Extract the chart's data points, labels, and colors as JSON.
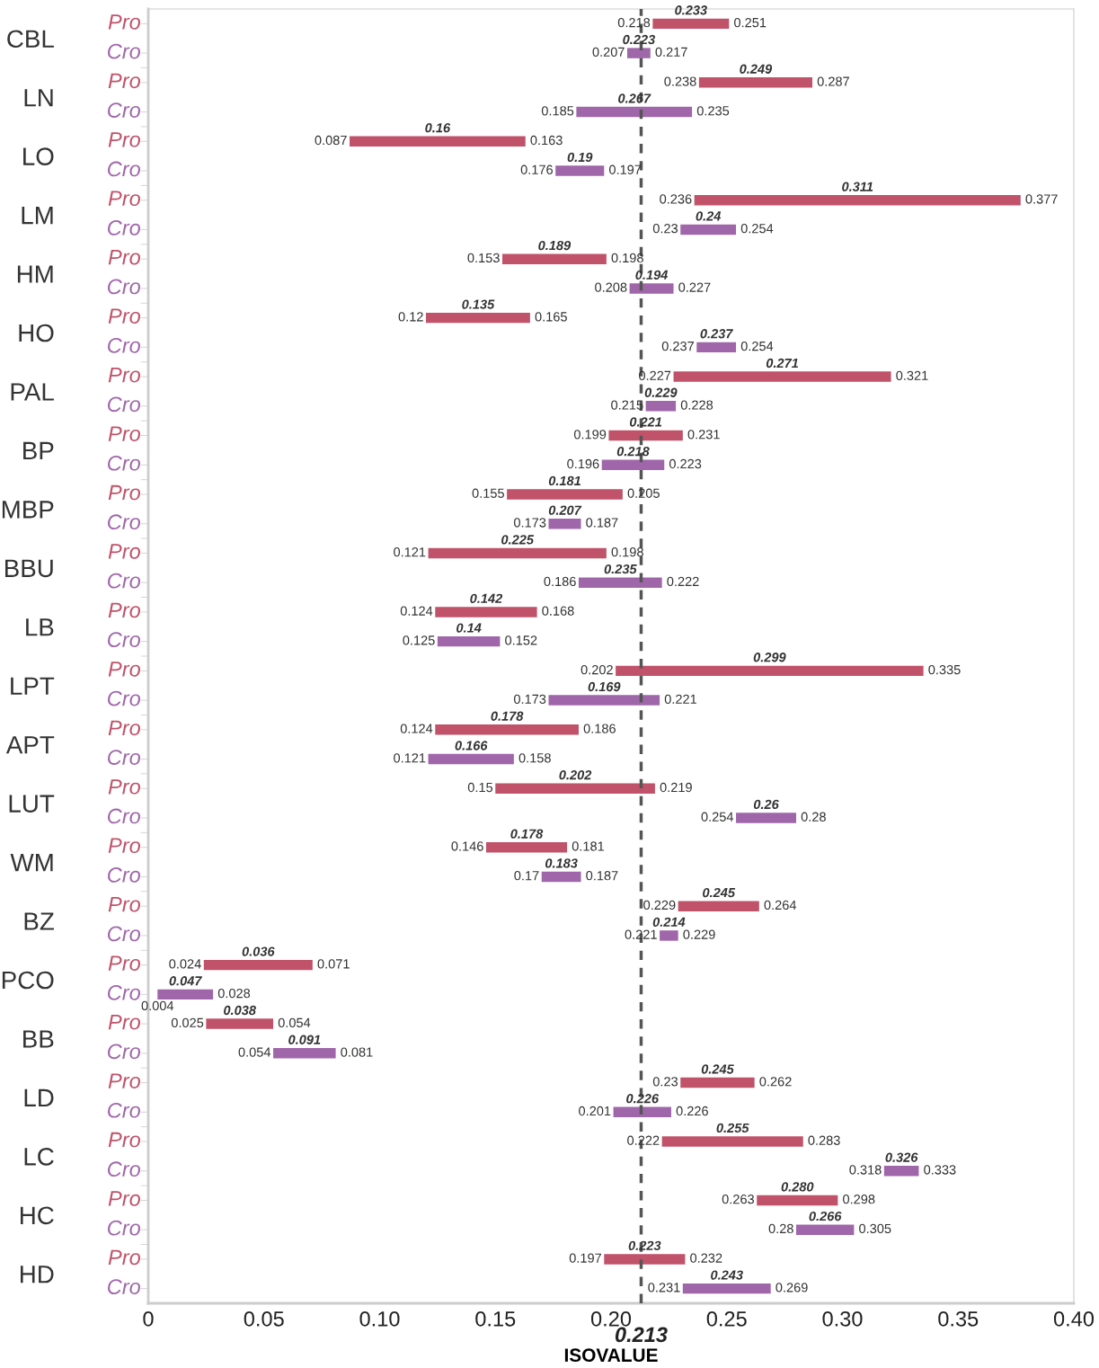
{
  "chart_data": {
    "type": "bar",
    "orientation": "horizontal",
    "xlabel": "ISOVALUE",
    "categories": [
      "CBL",
      "LN",
      "LO",
      "LM",
      "HM",
      "HO",
      "PAL",
      "BP",
      "MBP",
      "BBU",
      "LB",
      "LPT",
      "APT",
      "LUT",
      "WM",
      "BZ",
      "PCO",
      "BB",
      "LD",
      "LC",
      "HC",
      "HD"
    ],
    "series": [
      {
        "name": "Pro",
        "color": "#c0526a",
        "base": [
          0.218,
          0.238,
          0.087,
          0.236,
          0.153,
          0.12,
          0.227,
          0.199,
          0.155,
          0.121,
          0.124,
          0.202,
          0.124,
          0.15,
          0.146,
          0.229,
          0.024,
          0.025,
          0.23,
          0.222,
          0.263,
          0.197
        ],
        "values": [
          0.033,
          0.049,
          0.076,
          0.141,
          0.045,
          0.045,
          0.094,
          0.032,
          0.05,
          0.077,
          0.044,
          0.133,
          0.062,
          0.069,
          0.035,
          0.035,
          0.047,
          0.029,
          0.032,
          0.061,
          0.035,
          0.035
        ]
      },
      {
        "name": "Cro",
        "color": "#a066aa",
        "base": [
          0.207,
          0.185,
          0.176,
          0.23,
          0.208,
          0.237,
          0.215,
          0.196,
          0.173,
          0.186,
          0.125,
          0.173,
          0.121,
          0.254,
          0.17,
          0.221,
          0.004,
          0.054,
          0.201,
          0.318,
          0.28,
          0.231
        ],
        "values": [
          0.01,
          0.05,
          0.021,
          0.024,
          0.019,
          0.017,
          0.013,
          0.027,
          0.014,
          0.036,
          0.027,
          0.048,
          0.037,
          0.026,
          0.017,
          0.008,
          0.024,
          0.027,
          0.025,
          0.015,
          0.025,
          0.038
        ]
      }
    ],
    "annotations": [
      "0.218",
      "0.233",
      "0.251",
      "0.207",
      "0.223",
      "0.217",
      "0.238",
      "0.249",
      "0.287",
      "0.185",
      "0.267",
      "0.235",
      "0.087",
      "0.16",
      "0.163",
      "0.176",
      "0.19",
      "0.197",
      "0.236",
      "0.311",
      "0.377",
      "0.23",
      "0.24",
      "0.254",
      "0.153",
      "0.189",
      "0.198",
      "0.208",
      "0.194",
      "0.227",
      "0.12",
      "0.135",
      "0.165",
      "0.237",
      "0.237",
      "0.254",
      "0.227",
      "0.271",
      "0.321",
      "0.215",
      "0.229",
      "0.228",
      "0.199",
      "0.221",
      "0.231",
      "0.196",
      "0.218",
      "0.223",
      "0.155",
      "0.181",
      "0.205",
      "0.173",
      "0.207",
      "0.187",
      "0.121",
      "0.225",
      "0.198",
      "0.186",
      "0.235",
      "0.222",
      "0.124",
      "0.142",
      "0.168",
      "0.125",
      "0.14",
      "0.152",
      "0.202",
      "0.299",
      "0.335",
      "0.173",
      "0.169",
      "0.221",
      "0.124",
      "0.178",
      "0.186",
      "0.121",
      "0.166",
      "0.158",
      "0.15",
      "0.202",
      "0.219",
      "0.254",
      "0.26",
      "0.28",
      "0.146",
      "0.178",
      "0.181",
      "0.17",
      "0.183",
      "0.187",
      "0.229",
      "0.245",
      "0.264",
      "0.221",
      "0.214",
      "0.229",
      "0.024",
      "0.036",
      "0.071",
      "0.004",
      "0.047",
      "0.028",
      "0.025",
      "0.038",
      "0.054",
      "0.054",
      "0.091",
      "0.081",
      "0.23",
      "0.245",
      "0.262",
      "0.201",
      "0.226",
      "0.226",
      "0.222",
      "0.255",
      "0.283",
      "0.318",
      "0.326",
      "0.333",
      "0.263",
      "0.280",
      "0.298",
      "0.28",
      "0.266",
      "0.305",
      "0.197",
      "0.223",
      "0.232",
      "0.231",
      "0.243",
      "0.269"
    ],
    "xlim": [
      0,
      0.4
    ],
    "xticks": [
      0,
      {
        "value": 0.05,
        "label": "0.05"
      },
      {
        "value": 0.1,
        "label": "0.10"
      },
      {
        "value": 0.15,
        "label": "0.15"
      },
      {
        "value": 0.2,
        "label": "0.20"
      },
      {
        "value": 0.25,
        "label": "0.25"
      },
      {
        "value": 0.3,
        "label": "0.30"
      },
      {
        "value": 0.35,
        "label": "0.35"
      },
      {
        "value": 0.4,
        "label": "0.40"
      }
    ],
    "ref_lines": [
      {
        "axis": "x",
        "value": 0.213,
        "label": "0.213",
        "color": "#555555",
        "line_style": "dashed"
      }
    ],
    "grid": false,
    "legend": false
  }
}
